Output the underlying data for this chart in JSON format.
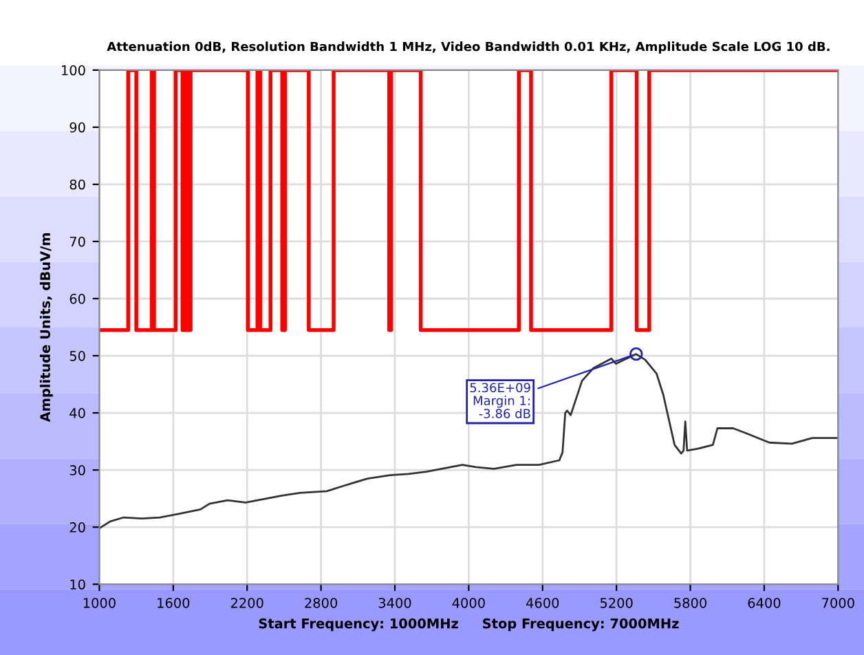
{
  "chart_data": {
    "type": "line",
    "title": "Attenuation 0dB, Resolution Bandwidth 1 MHz, Video Bandwidth 0.01 KHz, Amplitude Scale LOG 10 dB.",
    "xlabel": "Start Frequency: 1000MHz     Stop Frequency: 7000MHz",
    "ylabel": "Amplitude Units, dBuV/m",
    "series": [
      {
        "type": "step",
        "color": "#ff0000",
        "x": [
          1000,
          1234,
          1300,
          1425,
          1444,
          1620,
          1675,
          1704,
          1719,
          1741,
          2206,
          2284,
          2306,
          2390,
          2485,
          2507,
          2701,
          2903,
          3354,
          3368,
          3610,
          4407,
          4506,
          5158,
          5364,
          5466,
          7000
        ],
        "values": [
          54.5,
          100,
          54.5,
          100,
          54.5,
          100,
          54.5,
          100,
          54.5,
          100,
          54.5,
          100,
          54.5,
          100,
          54.5,
          100,
          54.5,
          100,
          54.5,
          100,
          54.5,
          100,
          54.5,
          100,
          54.5,
          100,
          100
        ]
      },
      {
        "color": "#333333",
        "x": [
          1000,
          1088,
          1198,
          1345,
          1491,
          1638,
          1821,
          1895,
          2041,
          2188,
          2335,
          2481,
          2628,
          2848,
          2995,
          3178,
          3361,
          3508,
          3655,
          3802,
          3948,
          4058,
          4205,
          4388,
          4571,
          4736,
          4762,
          4784,
          4799,
          4828,
          4920,
          5011,
          5158,
          5195,
          5360,
          5433,
          5525,
          5580,
          5672,
          5726,
          5745,
          5759,
          5774,
          5855,
          5983,
          6020,
          6148,
          6258,
          6441,
          6625,
          6790,
          7000
        ],
        "values": [
          19.8,
          21.0,
          21.7,
          21.5,
          21.7,
          22.3,
          23.1,
          24.1,
          24.7,
          24.3,
          24.9,
          25.5,
          26.0,
          26.3,
          27.3,
          28.5,
          29.1,
          29.3,
          29.7,
          30.3,
          30.9,
          30.5,
          30.2,
          30.9,
          30.9,
          31.7,
          33.1,
          40.0,
          40.4,
          39.6,
          45.6,
          47.8,
          49.5,
          48.6,
          50.3,
          49.3,
          46.9,
          43.2,
          34.4,
          32.9,
          33.4,
          38.5,
          33.4,
          33.7,
          34.4,
          37.3,
          37.3,
          36.4,
          34.8,
          34.6,
          35.6,
          35.6
        ]
      }
    ],
    "annotations": [
      {
        "text": "5.36E+09\nMargin 1:\n-3.86 dB",
        "x": 5360,
        "y": 50.3
      }
    ],
    "xlim": [
      1000,
      7000
    ],
    "xticks": [
      1000,
      1600,
      2200,
      2800,
      3400,
      4000,
      4600,
      5200,
      5800,
      6400,
      7000
    ],
    "ylim": [
      10,
      100
    ],
    "yticks": [
      10,
      20,
      30,
      40,
      50,
      60,
      70,
      80,
      90,
      100
    ],
    "grid": true
  }
}
